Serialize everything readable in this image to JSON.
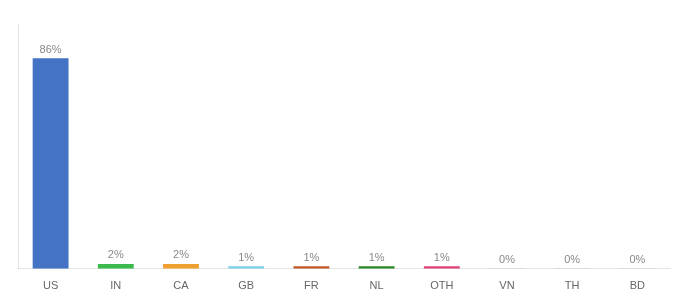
{
  "chart_data": {
    "type": "bar",
    "categories": [
      "US",
      "IN",
      "CA",
      "GB",
      "FR",
      "NL",
      "OTH",
      "VN",
      "TH",
      "BD"
    ],
    "values": [
      86,
      2,
      2,
      1,
      1,
      1,
      1,
      0.15,
      0.15,
      0.15
    ],
    "value_labels": [
      "86%",
      "2%",
      "2%",
      "1%",
      "1%",
      "1%",
      "1%",
      "0%",
      "0%",
      "0%"
    ],
    "colors": [
      "#4472c4",
      "#3dba4e",
      "#f0a030",
      "#7ecfe8",
      "#c05a28",
      "#2a8a2a",
      "#e0407a",
      "#aaaaaa",
      "#aaaaaa",
      "#aaaaaa"
    ],
    "ylim": [
      0,
      100
    ],
    "data_labels": true,
    "grid": false,
    "tick_labels": "x"
  }
}
